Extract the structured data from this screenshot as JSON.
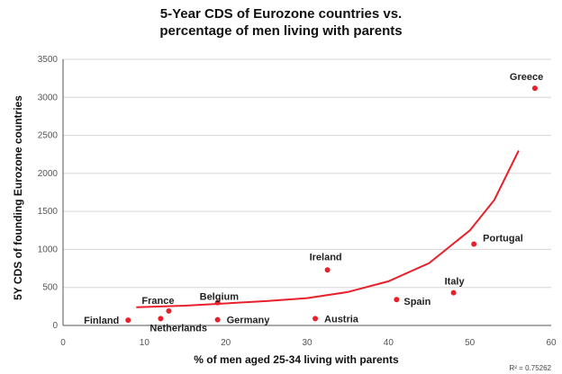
{
  "chart_data": {
    "type": "scatter",
    "title_line1": "5-Year CDS of Eurozone countries vs.",
    "title_line2": "percentage of men living with parents",
    "xlabel": "% of men aged 25-34 living with parents",
    "ylabel": "5Y CDS of founding Eurozone countries",
    "xlim": [
      0,
      60
    ],
    "ylim": [
      0,
      3500
    ],
    "xticks": [
      0,
      10,
      20,
      30,
      40,
      50,
      60
    ],
    "yticks": [
      0,
      500,
      1000,
      1500,
      2000,
      2500,
      3000,
      3500
    ],
    "grid": true,
    "trendline": "exponential",
    "r_squared_text": "R² = 0.75262",
    "points": [
      {
        "label": "Finland",
        "x": 8,
        "y": 70
      },
      {
        "label": "Netherlands",
        "x": 12,
        "y": 90
      },
      {
        "label": "France",
        "x": 13,
        "y": 190
      },
      {
        "label": "Belgium",
        "x": 19,
        "y": 300
      },
      {
        "label": "Germany",
        "x": 19,
        "y": 75
      },
      {
        "label": "Austria",
        "x": 31,
        "y": 90
      },
      {
        "label": "Ireland",
        "x": 32.5,
        "y": 730
      },
      {
        "label": "Spain",
        "x": 41,
        "y": 340
      },
      {
        "label": "Italy",
        "x": 48,
        "y": 430
      },
      {
        "label": "Portugal",
        "x": 50.5,
        "y": 1070
      },
      {
        "label": "Greece",
        "x": 58,
        "y": 3120
      }
    ],
    "trend_curve": [
      {
        "x": 9,
        "y": 240
      },
      {
        "x": 15,
        "y": 260
      },
      {
        "x": 20,
        "y": 290
      },
      {
        "x": 25,
        "y": 320
      },
      {
        "x": 30,
        "y": 360
      },
      {
        "x": 35,
        "y": 440
      },
      {
        "x": 40,
        "y": 580
      },
      {
        "x": 45,
        "y": 820
      },
      {
        "x": 50,
        "y": 1250
      },
      {
        "x": 53,
        "y": 1650
      },
      {
        "x": 56,
        "y": 2300
      }
    ],
    "colors": {
      "points": "#e8202a",
      "trend": "#e8202a",
      "grid": "#d6d6d6",
      "axis": "#555555"
    }
  }
}
